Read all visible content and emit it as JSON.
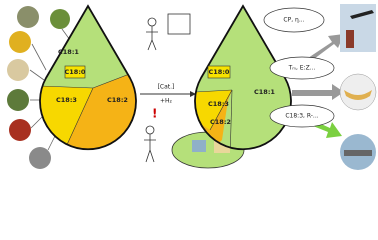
{
  "left_drop": {
    "labels": [
      "C18:0",
      "C18:1",
      "C18:3",
      "C18:2"
    ]
  },
  "reaction": {
    "catalyst": "[Cat.]",
    "reagent": "+H₂"
  },
  "right_drop": {
    "labels": [
      "C18:0",
      "C18:1",
      "C18:3",
      "C18:2"
    ]
  },
  "bubbles": [
    "CP, η...",
    "Tₘ, E:Z...",
    "C18:3, R-..."
  ]
}
